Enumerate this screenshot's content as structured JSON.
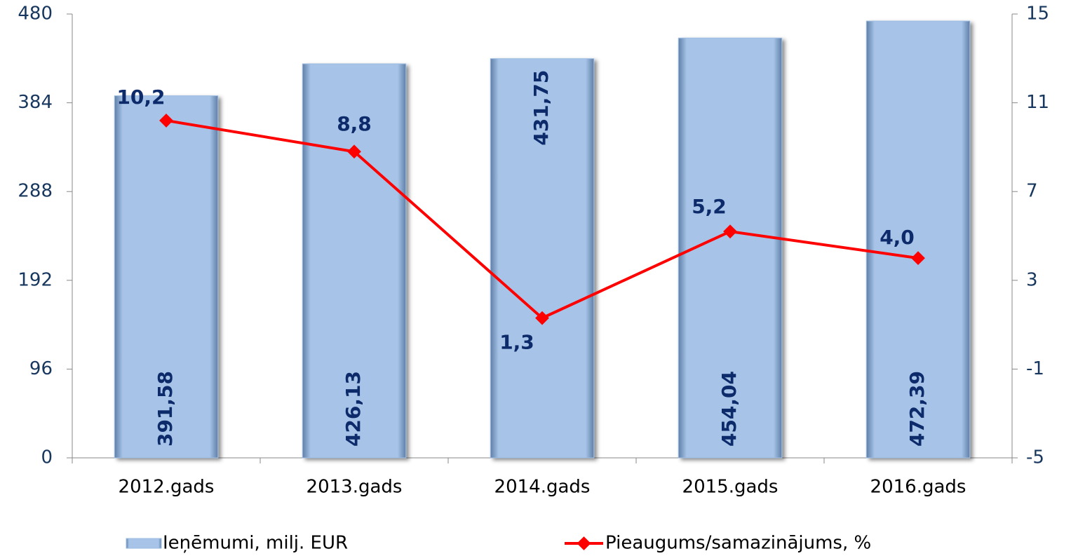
{
  "chart_data": {
    "type": "bar",
    "categories": [
      "2012.gads",
      "2013.gads",
      "2014.gads",
      "2015.gads",
      "2016.gads"
    ],
    "series": [
      {
        "name": "Ieņēmumi, milj. EUR",
        "type": "bar",
        "color": "#9dbde3",
        "values": [
          391.58,
          426.13,
          431.75,
          454.04,
          472.39
        ],
        "value_labels": [
          "391,58",
          "426,13",
          "431,75",
          "454,04",
          "472,39"
        ]
      },
      {
        "name": "Pieaugums/samazinājums, %",
        "type": "line",
        "axis": "y2",
        "color": "#ff0000",
        "values": [
          10.2,
          8.8,
          1.3,
          5.2,
          4.0
        ],
        "value_labels": [
          "10,2",
          "8,8",
          "1,3",
          "5,2",
          "4,0"
        ]
      }
    ],
    "ylim": [
      0,
      480
    ],
    "yticks": [
      0,
      96,
      192,
      288,
      384,
      480
    ],
    "y2lim": [
      -5,
      15
    ],
    "y2ticks": [
      -5,
      -1,
      3,
      7,
      11,
      15
    ],
    "legend": "bottom"
  }
}
